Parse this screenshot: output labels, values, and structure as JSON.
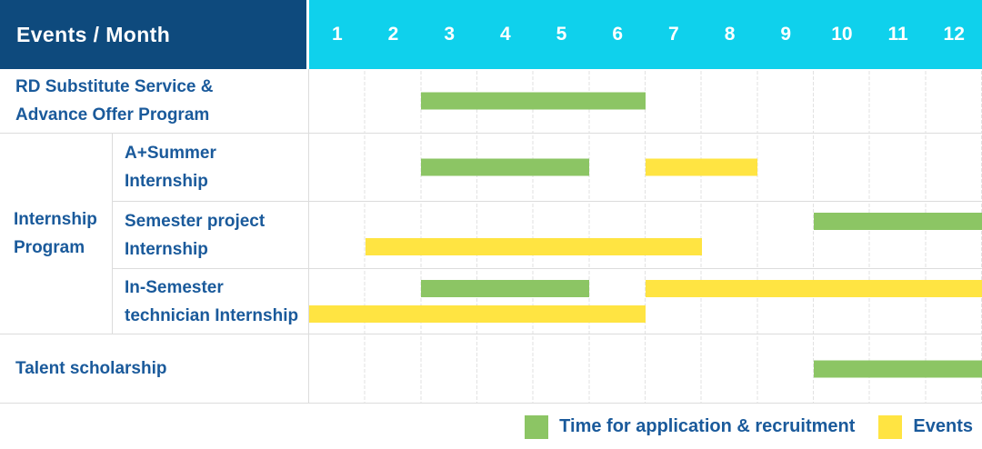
{
  "header": {
    "title": "Events / Month",
    "months": [
      "1",
      "2",
      "3",
      "4",
      "5",
      "6",
      "7",
      "8",
      "9",
      "10",
      "11",
      "12"
    ]
  },
  "labels": {
    "row1": {
      "line1": "RD Substitute Service &",
      "line2": "Advance Offer Program"
    },
    "group": {
      "line1": "Internship",
      "line2": "Program"
    },
    "row2": {
      "line1": "A+Summer",
      "line2": "Internship"
    },
    "row3": {
      "line1": "Semester project",
      "line2": "Internship"
    },
    "row4": {
      "line1": "In-Semester",
      "line2": "technician Internship"
    },
    "row5": {
      "line1": "Talent scholarship"
    }
  },
  "legend": {
    "items": [
      {
        "label": "Time for application & recruitment",
        "color": "#8CC564"
      },
      {
        "label": "Events",
        "color": "#FFE442"
      }
    ]
  },
  "colors": {
    "header_bg": "#0E4A7D",
    "months_bg": "#0FD1EC",
    "label_text": "#1A5A9B",
    "recruitment_green": "#8CC564",
    "events_yellow": "#FFE442",
    "grid_line": "#e2e2e2",
    "cell_border": "#dcdcdc"
  },
  "chart_data": {
    "type": "gantt",
    "title": "Events / Month",
    "x_axis": {
      "unit": "month",
      "range": [
        1,
        12
      ],
      "ticks": [
        "1",
        "2",
        "3",
        "4",
        "5",
        "6",
        "7",
        "8",
        "9",
        "10",
        "11",
        "12"
      ]
    },
    "legend_entries": [
      "Time for application & recruitment",
      "Events"
    ],
    "legend_position": "bottom-right",
    "grid": true,
    "rows": [
      {
        "label": "RD Substitute Service & Advance Offer Program",
        "group": null,
        "bars": [
          {
            "series": "Time for application & recruitment",
            "color": "#8CC564",
            "start_month": 3,
            "end_month": 6,
            "lane": "center"
          }
        ]
      },
      {
        "label": "A+Summer Internship",
        "group": "Internship Program",
        "bars": [
          {
            "series": "Time for application & recruitment",
            "color": "#8CC564",
            "start_month": 3,
            "end_month": 5,
            "lane": "center"
          },
          {
            "series": "Events",
            "color": "#FFE442",
            "start_month": 7,
            "end_month": 8,
            "lane": "center"
          }
        ]
      },
      {
        "label": "Semester project Internship",
        "group": "Internship Program",
        "bars": [
          {
            "series": "Time for application & recruitment",
            "color": "#8CC564",
            "start_month": 10,
            "end_month": 12,
            "lane": "upper"
          },
          {
            "series": "Events",
            "color": "#FFE442",
            "start_month": 2,
            "end_month": 7,
            "lane": "lower"
          }
        ]
      },
      {
        "label": "In-Semester technician Internship",
        "group": "Internship Program",
        "bars": [
          {
            "series": "Time for application & recruitment",
            "color": "#8CC564",
            "start_month": 3,
            "end_month": 5,
            "lane": "upper"
          },
          {
            "series": "Events",
            "color": "#FFE442",
            "start_month": 7,
            "end_month": 12,
            "lane": "upper"
          },
          {
            "series": "Events",
            "color": "#FFE442",
            "start_month": 1,
            "end_month": 6,
            "lane": "lower"
          }
        ]
      },
      {
        "label": "Talent scholarship",
        "group": null,
        "bars": [
          {
            "series": "Time for application & recruitment",
            "color": "#8CC564",
            "start_month": 10,
            "end_month": 12,
            "lane": "center"
          }
        ]
      }
    ]
  }
}
